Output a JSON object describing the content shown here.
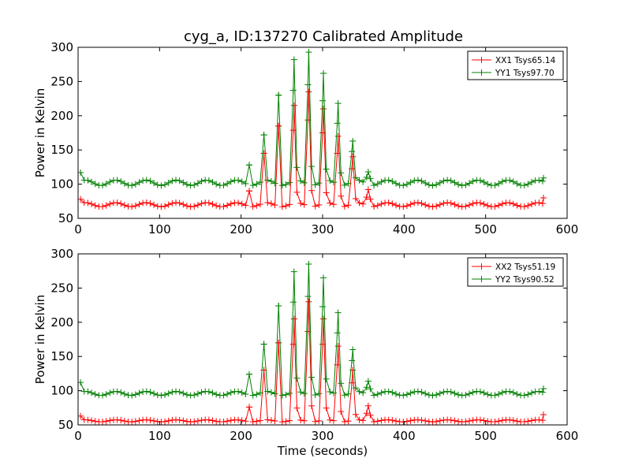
{
  "figure": {
    "title": "cyg_a, ID:137270 Calibrated Amplitude"
  },
  "chart_data": [
    {
      "type": "line",
      "title": "cyg_a, ID:137270 Calibrated Amplitude",
      "xlabel": "",
      "ylabel": "Power in Kelvin",
      "xlim": [
        0,
        600
      ],
      "ylim": [
        50,
        300
      ],
      "xticks": [
        0,
        100,
        200,
        300,
        400,
        500,
        600
      ],
      "yticks": [
        50,
        100,
        150,
        200,
        250,
        300
      ],
      "grid": false,
      "legend_position": "top-right",
      "marker": "plus",
      "series": [
        {
          "name": "XX1 Tsys65.14",
          "color": "#ff0000",
          "baseline": 70,
          "wave_amplitude": 3,
          "start_value": 78,
          "end_value": 80,
          "peaks": [
            [
              210,
              90
            ],
            [
              228,
              145
            ],
            [
              246,
              185
            ],
            [
              265,
              215
            ],
            [
              283,
              235
            ],
            [
              301,
              210
            ],
            [
              319,
              170
            ],
            [
              337,
              140
            ],
            [
              356,
              92
            ]
          ]
        },
        {
          "name": "YY1 Tsys97.70",
          "color": "#008000",
          "baseline": 102,
          "wave_amplitude": 4,
          "start_value": 117,
          "end_value": 109,
          "peaks": [
            [
              210,
              128
            ],
            [
              228,
              172
            ],
            [
              246,
              230
            ],
            [
              265,
              282
            ],
            [
              283,
              293
            ],
            [
              301,
              262
            ],
            [
              319,
              218
            ],
            [
              337,
              163
            ],
            [
              356,
              118
            ]
          ]
        }
      ]
    },
    {
      "type": "line",
      "xlabel": "Time (seconds)",
      "ylabel": "Power in Kelvin",
      "xlim": [
        0,
        600
      ],
      "ylim": [
        50,
        300
      ],
      "xticks": [
        0,
        100,
        200,
        300,
        400,
        500,
        600
      ],
      "yticks": [
        50,
        100,
        150,
        200,
        250,
        300
      ],
      "grid": false,
      "legend_position": "top-right",
      "marker": "plus",
      "series": [
        {
          "name": "XX2 Tsys51.19",
          "color": "#ff0000",
          "baseline": 56,
          "wave_amplitude": 1.5,
          "start_value": 63,
          "end_value": 65,
          "peaks": [
            [
              210,
              76
            ],
            [
              228,
              130
            ],
            [
              246,
              170
            ],
            [
              265,
              205
            ],
            [
              283,
              230
            ],
            [
              301,
              205
            ],
            [
              319,
              165
            ],
            [
              337,
              130
            ],
            [
              356,
              78
            ]
          ]
        },
        {
          "name": "YY2 Tsys90.52",
          "color": "#008000",
          "baseline": 96,
          "wave_amplitude": 3,
          "start_value": 112,
          "end_value": 103,
          "peaks": [
            [
              210,
              124
            ],
            [
              228,
              168
            ],
            [
              246,
              224
            ],
            [
              265,
              274
            ],
            [
              283,
              285
            ],
            [
              301,
              265
            ],
            [
              319,
              214
            ],
            [
              337,
              160
            ],
            [
              356,
              114
            ]
          ]
        }
      ]
    }
  ]
}
